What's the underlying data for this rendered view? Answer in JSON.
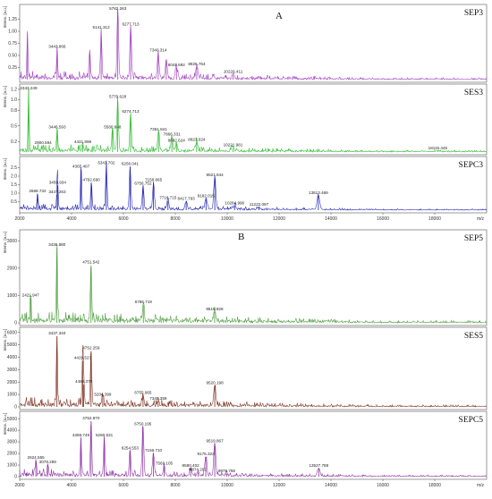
{
  "chart_data": [
    {
      "type": "line",
      "panel_label": "A",
      "xlabel": "m/z",
      "xlim": [
        2000,
        20000
      ],
      "x_ticks": [
        "2000",
        "4000",
        "6000",
        "8000",
        "10000",
        "12000",
        "14000",
        "16000",
        "18000"
      ],
      "ylabel": "Intens. [a.u.]",
      "series": [
        {
          "name": "SEP3",
          "color": "#a040c0",
          "ylim": [
            0,
            1.5
          ],
          "y_ticks": [
            "0.25",
            "0.50",
            "0.75",
            "1.00",
            "1.25"
          ],
          "peaks": [
            {
              "mz": 2300,
              "h": 0.95,
              "label": ""
            },
            {
              "mz": 3443.866,
              "h": 0.62,
              "label": "3443.866"
            },
            {
              "mz": 4700,
              "h": 0.55,
              "label": ""
            },
            {
              "mz": 5141.312,
              "h": 1.02,
              "label": "5141.312"
            },
            {
              "mz": 5782.263,
              "h": 1.45,
              "label": "5782.263"
            },
            {
              "mz": 6277.713,
              "h": 1.08,
              "label": "6277.713"
            },
            {
              "mz": 7340.314,
              "h": 0.55,
              "label": "7340.314"
            },
            {
              "mz": 7650,
              "h": 0.4,
              "label": ""
            },
            {
              "mz": 8043.692,
              "h": 0.24,
              "label": "8043.692"
            },
            {
              "mz": 8825.764,
              "h": 0.26,
              "label": "8825.764"
            },
            {
              "mz": 10226.411,
              "h": 0.1,
              "label": "10226.411"
            }
          ]
        },
        {
          "name": "SES3",
          "color": "#2db82d",
          "ylim": [
            0,
            1.25
          ],
          "y_ticks": [
            "0.2",
            "0.5",
            "0.8",
            "1.0",
            "1.2"
          ],
          "peaks": [
            {
              "mz": 2343.249,
              "h": 1.2,
              "label": "2343.249"
            },
            {
              "mz": 2900.594,
              "h": 0.12,
              "label": "2900.594"
            },
            {
              "mz": 3446.593,
              "h": 0.42,
              "label": "3446.593"
            },
            {
              "mz": 4431.998,
              "h": 0.14,
              "label": "4431.998"
            },
            {
              "mz": 5580.848,
              "h": 0.42,
              "label": "5580.848"
            },
            {
              "mz": 5779.628,
              "h": 1.0,
              "label": "5779.628"
            },
            {
              "mz": 6274.713,
              "h": 0.72,
              "label": "6274.713"
            },
            {
              "mz": 7351.841,
              "h": 0.38,
              "label": "7351.841"
            },
            {
              "mz": 7866.331,
              "h": 0.28,
              "label": "7866.331"
            },
            {
              "mz": 8042.624,
              "h": 0.16,
              "label": "8042.624"
            },
            {
              "mz": 8823.024,
              "h": 0.18,
              "label": "8823.024"
            },
            {
              "mz": 10221.981,
              "h": 0.08,
              "label": "10221.981"
            },
            {
              "mz": 18115.445,
              "h": 0.02,
              "label": "18115.445"
            }
          ]
        },
        {
          "name": "SEPC3",
          "color": "#2020b0",
          "ylim": [
            0,
            3.0
          ],
          "y_ticks": [
            "0.5",
            "1.0",
            "1.5",
            "2.0",
            "2.5"
          ],
          "peaks": [
            {
              "mz": 2688.732,
              "h": 0.95,
              "label": "2688.732"
            },
            {
              "mz": 3447.263,
              "h": 0.9,
              "label": "3447.263"
            },
            {
              "mz": 3459.934,
              "h": 1.45,
              "label": "3459.934"
            },
            {
              "mz": 4365.407,
              "h": 2.4,
              "label": "4365.407"
            },
            {
              "mz": 4762.69,
              "h": 1.6,
              "label": "4762.690"
            },
            {
              "mz": 5341.702,
              "h": 2.6,
              "label": "5341.702"
            },
            {
              "mz": 6256.041,
              "h": 2.55,
              "label": "6256.041"
            },
            {
              "mz": 6756.752,
              "h": 1.4,
              "label": "6756.752"
            },
            {
              "mz": 7158.665,
              "h": 1.6,
              "label": "7158.665"
            },
            {
              "mz": 7716.715,
              "h": 0.55,
              "label": "7716.715"
            },
            {
              "mz": 8417.793,
              "h": 0.5,
              "label": "8417.793"
            },
            {
              "mz": 9182.015,
              "h": 0.65,
              "label": "9182.015"
            },
            {
              "mz": 9521.944,
              "h": 1.9,
              "label": "9521.944"
            },
            {
              "mz": 10284.996,
              "h": 0.25,
              "label": "10284.996"
            },
            {
              "mz": 11222.097,
              "h": 0.15,
              "label": "11222.097"
            },
            {
              "mz": 13513.469,
              "h": 0.85,
              "label": "13513.469"
            }
          ]
        }
      ]
    },
    {
      "type": "line",
      "panel_label": "B",
      "xlabel": "m/z",
      "xlim": [
        2000,
        20000
      ],
      "x_ticks": [
        "2000",
        "4000",
        "6000",
        "8000",
        "10000",
        "12000",
        "14000",
        "16000",
        "18000"
      ],
      "ylabel": "Intens. [a.u.]",
      "series": [
        {
          "name": "SEP5",
          "color": "#4a9a3a",
          "ylim": [
            0,
            3300
          ],
          "y_ticks": [
            "0",
            "1000",
            "2000",
            "3000"
          ],
          "peaks": [
            {
              "mz": 2421.947,
              "h": 900,
              "label": "2421.947"
            },
            {
              "mz": 3436.88,
              "h": 2750,
              "label": "3436.880"
            },
            {
              "mz": 4751.542,
              "h": 2100,
              "label": "4751.542"
            },
            {
              "mz": 6766.719,
              "h": 650,
              "label": "6766.719"
            },
            {
              "mz": 9515.928,
              "h": 400,
              "label": "9515.928"
            }
          ]
        },
        {
          "name": "SES5",
          "color": "#7a3020",
          "ylim": [
            0,
            6200
          ],
          "y_ticks": [
            "0",
            "1000",
            "2000",
            "3000",
            "4000",
            "5000",
            "6000"
          ],
          "peaks": [
            {
              "mz": 3437.34,
              "h": 5700,
              "label": "3437.340"
            },
            {
              "mz": 4429.523,
              "h": 3700,
              "label": "4429.523"
            },
            {
              "mz": 4469.379,
              "h": 1800,
              "label": "4469.379"
            },
            {
              "mz": 4752.259,
              "h": 4500,
              "label": "4752.259"
            },
            {
              "mz": 5204.399,
              "h": 750,
              "label": "5204.399"
            },
            {
              "mz": 6755.965,
              "h": 900,
              "label": "6755.965"
            },
            {
              "mz": 7340.359,
              "h": 450,
              "label": "7340.359"
            },
            {
              "mz": 9520.198,
              "h": 1700,
              "label": "9520.198"
            }
          ]
        },
        {
          "name": "SEPC5",
          "color": "#8a30a0",
          "ylim": [
            0,
            5400
          ],
          "y_ticks": [
            "0",
            "1000",
            "2000",
            "3000",
            "4000",
            "5000"
          ],
          "peaks": [
            {
              "mz": 2624.555,
              "h": 1400,
              "label": "2624.555"
            },
            {
              "mz": 3078.289,
              "h": 1000,
              "label": "3078.289"
            },
            {
              "mz": 4359.749,
              "h": 3300,
              "label": "4359.749"
            },
            {
              "mz": 4752.97,
              "h": 4800,
              "label": "4752.970"
            },
            {
              "mz": 5260.531,
              "h": 3300,
              "label": "5260.531"
            },
            {
              "mz": 6254.553,
              "h": 2200,
              "label": "6254.553"
            },
            {
              "mz": 6750.195,
              "h": 4300,
              "label": "6750.195"
            },
            {
              "mz": 7156.71,
              "h": 2000,
              "label": "7156.710"
            },
            {
              "mz": 7569.105,
              "h": 900,
              "label": "7569.105"
            },
            {
              "mz": 8590.402,
              "h": 700,
              "label": "8590.402"
            },
            {
              "mz": 8874.202,
              "h": 350,
              "label": "8874.202"
            },
            {
              "mz": 9175.323,
              "h": 1700,
              "label": "9175.323"
            },
            {
              "mz": 9519.867,
              "h": 2800,
              "label": "9519.867"
            },
            {
              "mz": 9979.758,
              "h": 250,
              "label": "9979.758"
            },
            {
              "mz": 13527.788,
              "h": 700,
              "label": "13527.788"
            }
          ]
        }
      ]
    }
  ]
}
